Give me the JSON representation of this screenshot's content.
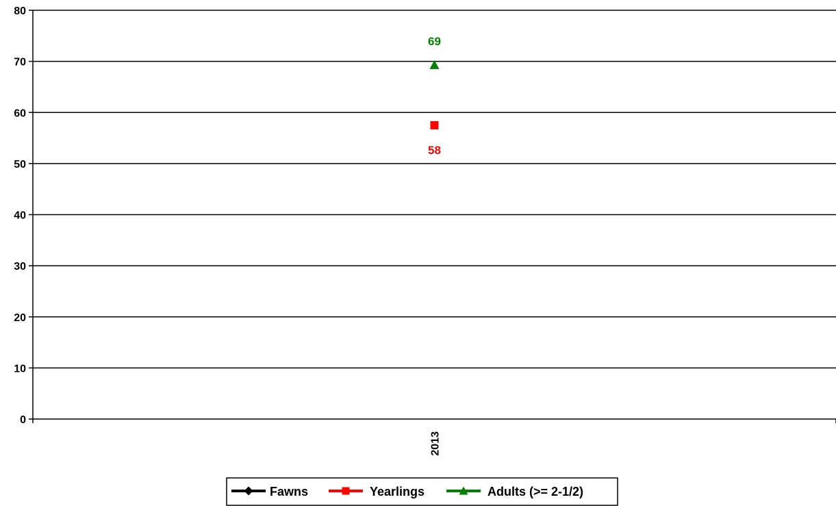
{
  "chart_data": {
    "type": "line",
    "title": "",
    "xlabel": "",
    "ylabel": "",
    "categories": [
      "2013"
    ],
    "ylim": [
      0,
      80
    ],
    "yticks": [
      0,
      10,
      20,
      30,
      40,
      50,
      60,
      70,
      80
    ],
    "grid": true,
    "legend_position": "bottom",
    "series": [
      {
        "name": "Fawns",
        "values": [
          null
        ],
        "color": "#000000",
        "marker": "diamond"
      },
      {
        "name": "Yearlings",
        "values": [
          57.5
        ],
        "label": "58",
        "color": "#ff0000",
        "marker": "square"
      },
      {
        "name": "Adults (>= 2-1/2)",
        "values": [
          69.3
        ],
        "label": "69",
        "color": "#008000",
        "marker": "triangle"
      }
    ]
  }
}
